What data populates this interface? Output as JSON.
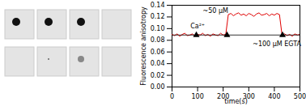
{
  "chart_data": {
    "type": "line",
    "x_label": "time(s)",
    "y_label": "Fluorescence anisotropy",
    "xlim": [
      0,
      500
    ],
    "xticks": [
      0,
      100,
      200,
      300,
      400,
      500
    ],
    "ylim": [
      0,
      0.14
    ],
    "yticks": [
      {
        "value": 0,
        "label": "0.00"
      },
      {
        "value": 0.02,
        "label": "0.02"
      },
      {
        "value": 0.04,
        "label": "0.04"
      },
      {
        "value": 0.06,
        "label": "0.06"
      },
      {
        "value": 0.08,
        "label": "0.08"
      },
      {
        "value": 0.1,
        "label": "0.10"
      },
      {
        "value": 0.12,
        "label": "0.12"
      },
      {
        "value": 0.14,
        "label": "0.14"
      }
    ],
    "x": [
      0,
      10,
      20,
      30,
      40,
      50,
      60,
      70,
      80,
      90,
      100,
      110,
      120,
      130,
      140,
      150,
      160,
      170,
      180,
      190,
      200,
      210,
      220,
      230,
      240,
      250,
      260,
      270,
      280,
      290,
      300,
      310,
      320,
      330,
      340,
      350,
      360,
      370,
      380,
      390,
      400,
      410,
      420,
      430,
      440,
      450,
      460,
      470,
      480,
      490,
      500
    ],
    "series": [
      {
        "color": "#e00000",
        "values": [
          0.09,
          0.088,
          0.091,
          0.087,
          0.09,
          0.092,
          0.088,
          0.089,
          0.091,
          0.087,
          0.09,
          0.089,
          0.092,
          0.088,
          0.09,
          0.087,
          0.091,
          0.089,
          0.088,
          0.092,
          0.089,
          0.09,
          0.124,
          0.126,
          0.122,
          0.125,
          0.127,
          0.123,
          0.125,
          0.122,
          0.126,
          0.124,
          0.121,
          0.125,
          0.127,
          0.123,
          0.124,
          0.126,
          0.122,
          0.125,
          0.123,
          0.126,
          0.124,
          0.089,
          0.091,
          0.088,
          0.09,
          0.087,
          0.091,
          0.089,
          0.09
        ]
      }
    ],
    "hline": 0.089,
    "events": [
      95,
      215,
      432
    ],
    "annotations": [
      {
        "text": "Ca²⁺",
        "x": 100,
        "y": 0.104
      },
      {
        "text": "~50 μM",
        "x": 170,
        "y": 0.131
      },
      {
        "text": "~100 μM EGTA",
        "x": 410,
        "y": 0.074
      }
    ]
  }
}
